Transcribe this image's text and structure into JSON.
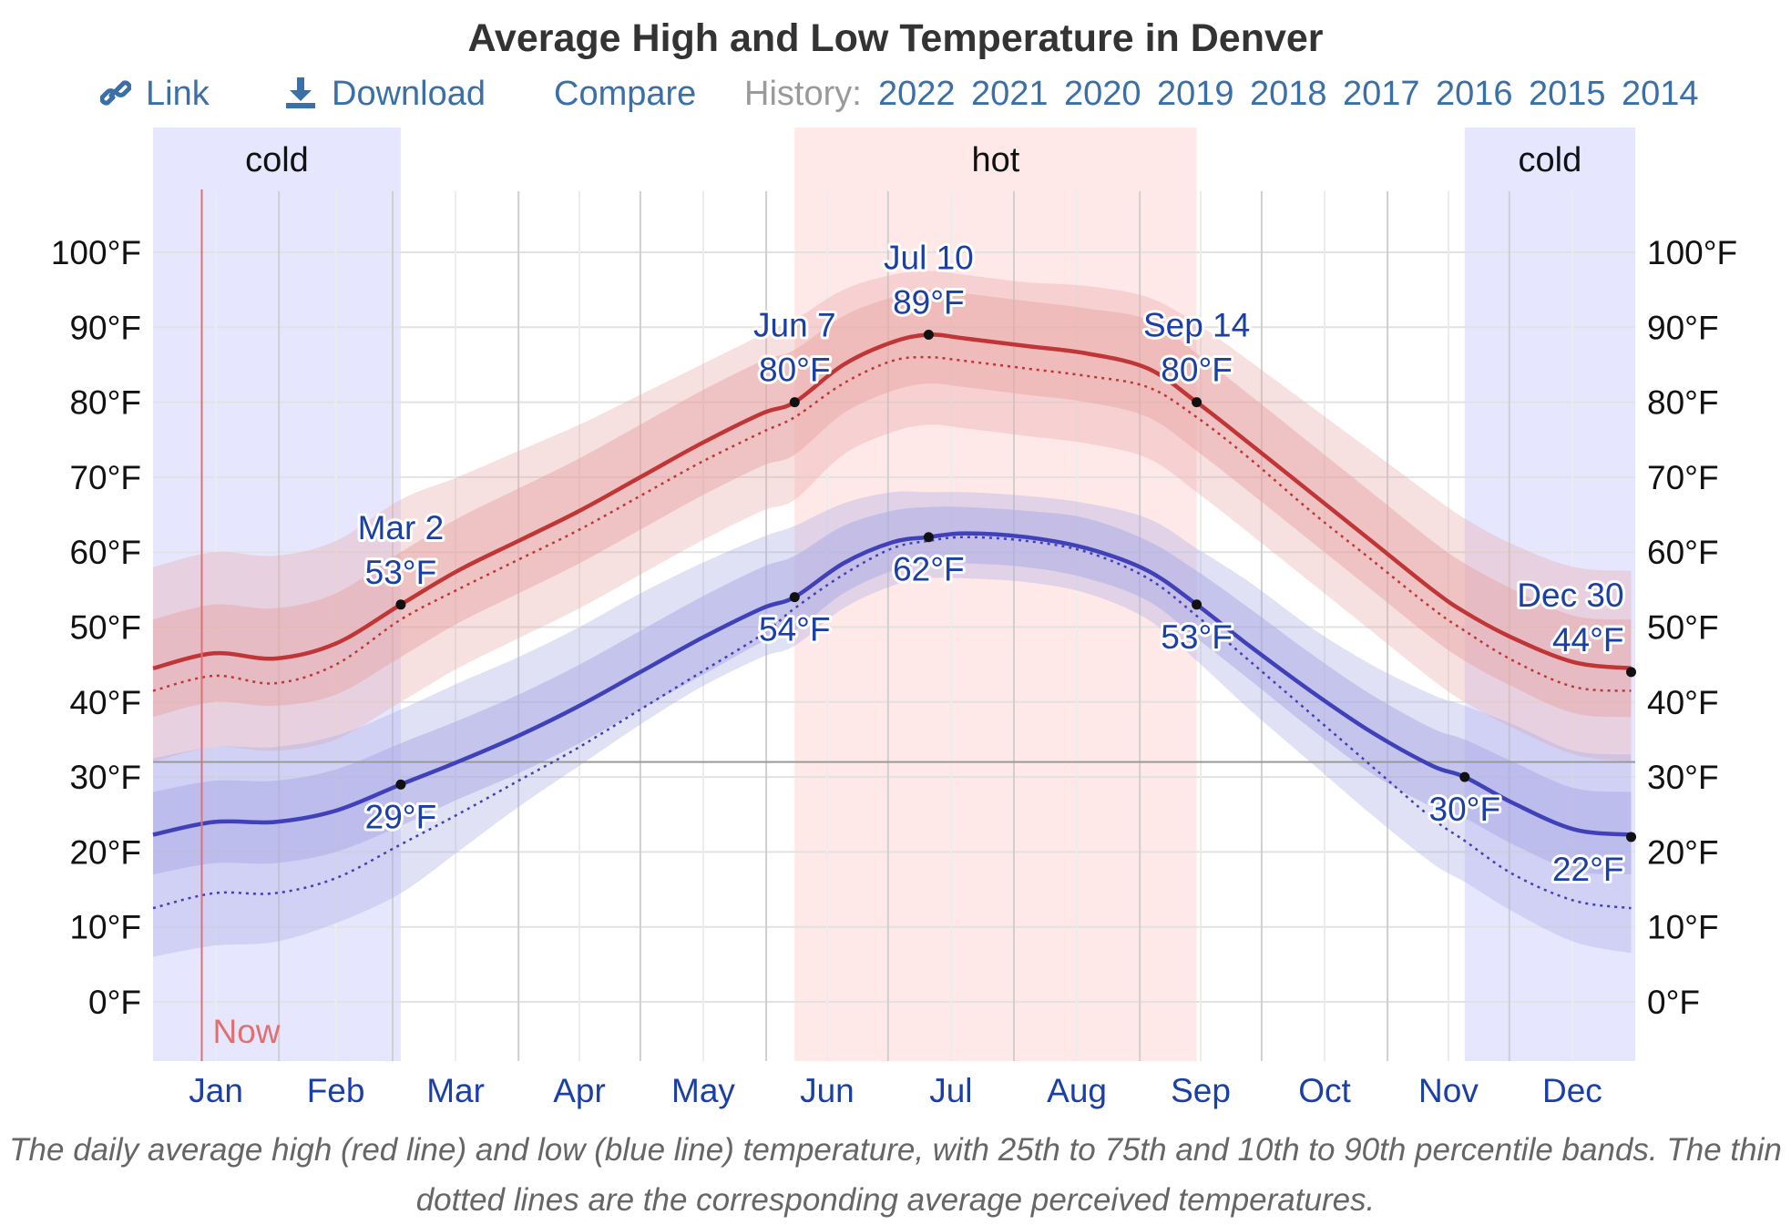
{
  "title": "Average High and Low Temperature in Denver",
  "toolbar": {
    "link_label": "Link",
    "download_label": "Download",
    "compare_label": "Compare",
    "history_label": "History:",
    "years": [
      "2022",
      "2021",
      "2020",
      "2019",
      "2018",
      "2017",
      "2016",
      "2015",
      "2014"
    ]
  },
  "caption": "The daily average high (red line) and low (blue line) temperature, with 25th to 75th and 10th to 90th percentile bands. The thin dotted lines are the corresponding average perceived temperatures.",
  "colors": {
    "high_line": "#c03535",
    "low_line": "#4040b8",
    "high_band": "#e8a6a6",
    "low_band": "#a8a8e4",
    "cold_season": "#e6e6ff",
    "hot_season": "#ffe8e8",
    "now_line": "#e07070",
    "label_text": "#1a3fa6"
  },
  "chart_data": {
    "type": "line",
    "x_unit": "day of year",
    "y_unit": "°F",
    "ylim": [
      -8,
      107
    ],
    "yticks": [
      0,
      10,
      20,
      30,
      40,
      50,
      60,
      70,
      80,
      90,
      100
    ],
    "ytick_labels": [
      "0°F",
      "10°F",
      "20°F",
      "30°F",
      "40°F",
      "50°F",
      "60°F",
      "70°F",
      "80°F",
      "90°F",
      "100°F"
    ],
    "months": [
      "Jan",
      "Feb",
      "Mar",
      "Apr",
      "May",
      "Jun",
      "Jul",
      "Aug",
      "Sep",
      "Oct",
      "Nov",
      "Dec"
    ],
    "grid": true,
    "freezing_line": 32,
    "now_label": "Now",
    "now_day": 12,
    "seasons": [
      {
        "label": "cold",
        "start_day": 0,
        "end_day": 61,
        "kind": "cold"
      },
      {
        "label": "hot",
        "start_day": 158,
        "end_day": 257,
        "kind": "hot"
      },
      {
        "label": "cold",
        "start_day": 323,
        "end_day": 365,
        "kind": "cold"
      }
    ],
    "days": [
      0,
      15,
      30,
      45,
      61,
      75,
      90,
      105,
      120,
      135,
      150,
      158,
      170,
      182,
      191,
      200,
      215,
      230,
      245,
      257,
      270,
      285,
      300,
      315,
      323,
      335,
      350,
      364
    ],
    "series": [
      {
        "name": "high",
        "values": [
          44.5,
          46.5,
          45.8,
          47.8,
          53.0,
          57.5,
          61.5,
          65.5,
          70,
          74.5,
          78.5,
          80.0,
          85.0,
          88.0,
          89.0,
          88.5,
          87.5,
          86.5,
          84.5,
          80.0,
          74.5,
          68,
          61.5,
          55,
          52.0,
          48.5,
          45.3,
          44.5
        ],
        "p25": [
          38,
          40,
          39.5,
          41,
          46,
          50.5,
          54.5,
          58.5,
          63,
          67.5,
          71.5,
          73,
          78.5,
          81.5,
          82.5,
          82,
          81,
          80,
          78,
          73.5,
          68,
          61.5,
          55,
          48.5,
          45.5,
          42,
          38.5,
          38
        ],
        "p75": [
          51,
          53,
          52.5,
          54.5,
          60,
          64.5,
          68.5,
          72.5,
          77,
          81.5,
          85.5,
          87,
          91.5,
          94,
          95,
          94.5,
          93.5,
          92.5,
          91,
          86.5,
          81,
          74.5,
          68,
          61.5,
          58.5,
          55,
          51.5,
          51
        ],
        "p10": [
          32,
          34,
          33.5,
          35,
          40,
          44.5,
          48.5,
          52.5,
          57,
          61.5,
          65.5,
          67,
          73,
          76,
          77,
          76.5,
          75.5,
          74.5,
          72.5,
          68,
          62.5,
          56,
          49.5,
          43,
          40,
          36.5,
          33,
          32
        ],
        "p90": [
          58,
          60,
          59.5,
          61.5,
          67,
          70,
          73.5,
          77,
          81,
          85,
          89,
          91,
          95,
          97,
          97.5,
          97,
          96,
          95.5,
          94,
          90.5,
          85.5,
          79.5,
          73.5,
          67.5,
          64.5,
          61,
          58,
          57.5
        ],
        "perceived": [
          41.5,
          43.5,
          42.5,
          45,
          51.0,
          55,
          59,
          63,
          67.5,
          72,
          76,
          78,
          82.5,
          85.5,
          86,
          85.5,
          84.5,
          83.5,
          82,
          78,
          72.5,
          65.5,
          59,
          52.5,
          49.5,
          45.5,
          42,
          41.5
        ]
      },
      {
        "name": "low",
        "values": [
          22.3,
          24.0,
          24.0,
          25.5,
          29.0,
          32,
          35.5,
          39.5,
          44,
          48.5,
          52.5,
          54.0,
          58.5,
          61.3,
          62.0,
          62.5,
          62.0,
          60.5,
          57.5,
          53.0,
          47.5,
          41.5,
          36,
          31.5,
          30.0,
          26.5,
          23,
          22.3
        ],
        "p25": [
          17,
          18.5,
          18.5,
          20,
          23.5,
          27,
          30.5,
          34.5,
          39,
          43.5,
          48,
          49.5,
          54.5,
          57.5,
          58.5,
          58.5,
          58,
          56.5,
          53.5,
          48.5,
          43,
          36.5,
          30.5,
          26,
          24.5,
          21,
          17.5,
          17
        ],
        "p75": [
          28,
          29.5,
          29.5,
          31,
          34.5,
          37.5,
          41,
          45,
          49.5,
          54,
          58,
          59.5,
          63.5,
          65.5,
          66,
          66,
          65.5,
          64.5,
          61.5,
          57.5,
          52.5,
          46.5,
          41,
          36.5,
          35,
          32,
          28.5,
          28
        ],
        "p10": [
          6,
          7.5,
          8,
          10.5,
          14.5,
          20,
          26,
          31.5,
          37,
          42,
          46,
          47.5,
          52.5,
          55.5,
          56.5,
          56.5,
          56,
          54.5,
          51,
          45.5,
          39,
          32,
          25,
          18.5,
          16,
          12,
          8,
          6.5
        ],
        "p90": [
          32.5,
          34,
          34,
          35.5,
          39,
          42.5,
          46,
          50,
          54.5,
          58.5,
          62,
          63.5,
          66.5,
          68,
          68,
          68,
          67.5,
          66.5,
          64.5,
          60.5,
          56,
          50,
          45,
          41,
          39.5,
          37,
          33.5,
          33
        ],
        "perceived": [
          12.5,
          14.5,
          14.5,
          16.5,
          21,
          25,
          29.5,
          34,
          39,
          44,
          49,
          52.5,
          57,
          60.5,
          61.5,
          62,
          61.5,
          60,
          56.5,
          51.5,
          45.5,
          38.5,
          31.5,
          24.5,
          21.5,
          17,
          13.5,
          12.5
        ]
      }
    ],
    "annotations": [
      {
        "series": "high",
        "day": 61,
        "value": 53,
        "date": "Mar 2",
        "text": "53°F",
        "position": "above"
      },
      {
        "series": "high",
        "day": 158,
        "value": 80,
        "date": "Jun 7",
        "text": "80°F",
        "position": "above"
      },
      {
        "series": "high",
        "day": 191,
        "value": 89,
        "date": "Jul 10",
        "text": "89°F",
        "position": "above"
      },
      {
        "series": "high",
        "day": 257,
        "value": 80,
        "date": "Sep 14",
        "text": "80°F",
        "position": "above"
      },
      {
        "series": "high",
        "day": 364,
        "value": 44,
        "date": "Dec 30",
        "text": "44°F",
        "position": "above-left"
      },
      {
        "series": "low",
        "day": 61,
        "value": 29,
        "date": "",
        "text": "29°F",
        "position": "below"
      },
      {
        "series": "low",
        "day": 158,
        "value": 54,
        "date": "",
        "text": "54°F",
        "position": "below"
      },
      {
        "series": "low",
        "day": 191,
        "value": 62,
        "date": "",
        "text": "62°F",
        "position": "below"
      },
      {
        "series": "low",
        "day": 257,
        "value": 53,
        "date": "",
        "text": "53°F",
        "position": "below"
      },
      {
        "series": "low",
        "day": 323,
        "value": 30,
        "date": "",
        "text": "30°F",
        "position": "below"
      },
      {
        "series": "low",
        "day": 364,
        "value": 22,
        "date": "",
        "text": "22°F",
        "position": "below-left"
      }
    ]
  }
}
